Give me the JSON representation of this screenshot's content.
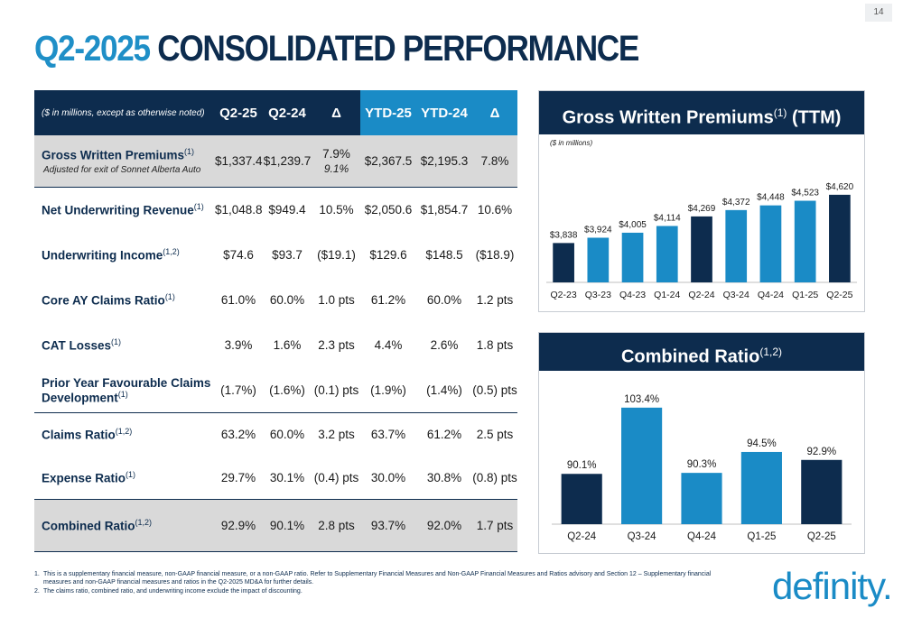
{
  "page_number": "14",
  "title": {
    "prefix": "Q2-2025",
    "rest": "CONSOLIDATED PERFORMANCE"
  },
  "table": {
    "header": {
      "note": "($ in millions, except as otherwise noted)",
      "cols": [
        "Q2-25",
        "Q2-24",
        "Δ",
        "YTD-25",
        "YTD-24",
        "Δ"
      ]
    },
    "rows": [
      {
        "label": "Gross Written Premiums",
        "sup": "(1)",
        "sublabel": "Adjusted for exit of Sonnet Alberta Auto",
        "values": [
          "$1,337.4",
          "$1,239.7",
          "7.9%",
          "$2,367.5",
          "$2,195.3",
          "7.8%"
        ],
        "alt": "9.1%"
      },
      {
        "label": "Net Underwriting Revenue",
        "sup": "(1)",
        "values": [
          "$1,048.8",
          "$949.4",
          "10.5%",
          "$2,050.6",
          "$1,854.7",
          "10.6%"
        ]
      },
      {
        "label": "Underwriting Income",
        "sup": "(1,2)",
        "values": [
          "$74.6",
          "$93.7",
          "($19.1)",
          "$129.6",
          "$148.5",
          "($18.9)"
        ]
      },
      {
        "label": "Core AY Claims Ratio",
        "sup": "(1)",
        "values": [
          "61.0%",
          "60.0%",
          "1.0 pts",
          "61.2%",
          "60.0%",
          "1.2 pts"
        ]
      },
      {
        "label": "CAT Losses",
        "sup": "(1)",
        "values": [
          "3.9%",
          "1.6%",
          "2.3 pts",
          "4.4%",
          "2.6%",
          "1.8 pts"
        ]
      },
      {
        "label": "Prior Year Favourable Claims Development",
        "sup": "(1)",
        "values": [
          "(1.7%)",
          "(1.6%)",
          "(0.1) pts",
          "(1.9%)",
          "(1.4%)",
          "(0.5) pts"
        ]
      },
      {
        "label": "Claims Ratio",
        "sup": "(1,2)",
        "values": [
          "63.2%",
          "60.0%",
          "3.2 pts",
          "63.7%",
          "61.2%",
          "2.5 pts"
        ]
      },
      {
        "label": "Expense Ratio",
        "sup": "(1)",
        "values": [
          "29.7%",
          "30.1%",
          "(0.4) pts",
          "30.0%",
          "30.8%",
          "(0.8) pts"
        ]
      },
      {
        "label": "Combined Ratio",
        "sup": "(1,2)",
        "values": [
          "92.9%",
          "90.1%",
          "2.8 pts",
          "93.7%",
          "92.0%",
          "1.7 pts"
        ]
      }
    ]
  },
  "chart_data": [
    {
      "type": "bar",
      "title": "Gross Written Premiums",
      "title_sup": "(1)",
      "title_suffix": "(TTM)",
      "unit_note": "($ in millions)",
      "categories": [
        "Q2-23",
        "Q3-23",
        "Q4-23",
        "Q1-24",
        "Q2-24",
        "Q3-24",
        "Q4-24",
        "Q1-25",
        "Q2-25"
      ],
      "values": [
        3838,
        3924,
        4005,
        4114,
        4269,
        4372,
        4448,
        4523,
        4620
      ],
      "labels": [
        "$3,838",
        "$3,924",
        "$4,005",
        "$4,114",
        "$4,269",
        "$4,372",
        "$4,448",
        "$4,523",
        "$4,620"
      ],
      "colors": [
        "#0d2c4e",
        "#1a8bc6",
        "#1a8bc6",
        "#1a8bc6",
        "#0d2c4e",
        "#1a8bc6",
        "#1a8bc6",
        "#1a8bc6",
        "#0d2c4e"
      ],
      "ylim": [
        3200,
        4750
      ]
    },
    {
      "type": "bar",
      "title": "Combined Ratio",
      "title_sup": "(1,2)",
      "categories": [
        "Q2-24",
        "Q3-24",
        "Q4-24",
        "Q1-25",
        "Q2-25"
      ],
      "values": [
        90.1,
        103.4,
        90.3,
        94.5,
        92.9
      ],
      "labels": [
        "90.1%",
        "103.4%",
        "90.3%",
        "94.5%",
        "92.9%"
      ],
      "colors": [
        "#0d2c4e",
        "#1a8bc6",
        "#1a8bc6",
        "#1a8bc6",
        "#0d2c4e"
      ],
      "ylim": [
        80,
        105
      ]
    }
  ],
  "footnotes": [
    {
      "num": "1.",
      "text": "This is a supplementary financial measure, non-GAAP financial measure, or a non-GAAP ratio. Refer to Supplementary Financial Measures and Non-GAAP Financial Measures and Ratios advisory and Section 12 – Supplementary financial measures and non-GAAP financial measures and ratios in the Q2-2025 MD&A for further details."
    },
    {
      "num": "2.",
      "text": "The claims ratio, combined ratio, and underwriting income exclude the impact of discounting."
    }
  ],
  "logo": "definity."
}
